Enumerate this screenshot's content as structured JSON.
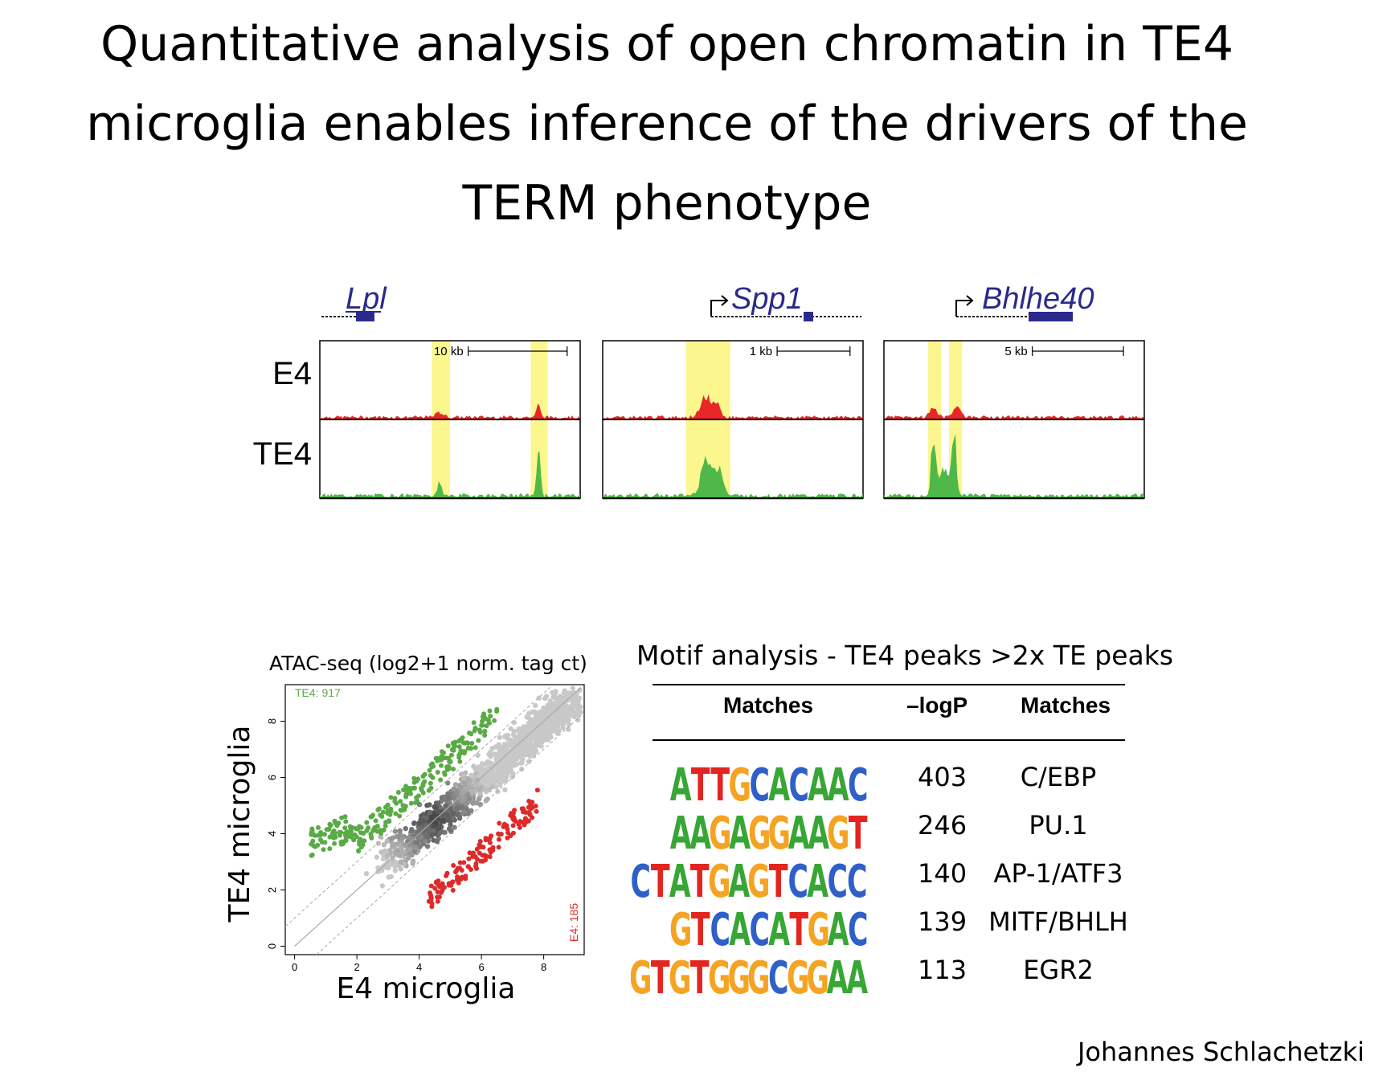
{
  "slide": {
    "title_lines": [
      "Quantitative analysis of open chromatin in TE4",
      "microglia enables inference of the drivers of the",
      "TERM phenotype"
    ],
    "author": "Johannes Schlachetzki"
  },
  "tracks": {
    "row_labels": [
      "E4",
      "TE4"
    ],
    "colors": {
      "E4": "#e8262a",
      "TE4": "#4fb848",
      "highlight": "#fbf68e",
      "gene": "#2a2a8c"
    },
    "panels": [
      {
        "gene": "Lpl",
        "scale": "10 kb",
        "tss_arrow": false
      },
      {
        "gene": "Spp1",
        "scale": "1 kb",
        "tss_arrow": true
      },
      {
        "gene": "Bhlhe40",
        "scale": "5 kb",
        "tss_arrow": true
      }
    ]
  },
  "chart_data": {
    "type": "scatter",
    "title": "ATAC-seq (log2+1 norm. tag ct)",
    "xlabel": "E4 microglia",
    "ylabel": "TE4 microglia",
    "xlim": [
      -0.3,
      9.3
    ],
    "ylim": [
      -0.3,
      9.3
    ],
    "xticks": [
      "0",
      "2",
      "4",
      "6",
      "8"
    ],
    "yticks": [
      "0",
      "2",
      "4",
      "6",
      "8"
    ],
    "series": [
      {
        "name": "TE4: 917",
        "color": "#5aaa46"
      },
      {
        "name": "E4: 185",
        "color": "#dd2a2a"
      }
    ],
    "grid": false
  },
  "motifs": {
    "title": "Motif analysis - TE4 peaks >2x TE peaks",
    "headers": [
      "Matches",
      "–logP",
      "Matches"
    ],
    "rows": [
      {
        "sequence": "ATTGCACAAC",
        "logp": "403",
        "tf": "C/EBP",
        "offset": 50
      },
      {
        "sequence": "AAGAGGAAGT",
        "logp": "246",
        "tf": "PU.1",
        "offset": 50
      },
      {
        "sequence": "CTATGAGTCACC",
        "logp": "140",
        "tf": "AP-1/ATF3",
        "offset": 0
      },
      {
        "sequence": "GTCACATGAC",
        "logp": "139",
        "tf": "MITF/BHLH",
        "offset": 50
      },
      {
        "sequence": "GTGTGGGCGGAA",
        "logp": "113",
        "tf": "EGR2",
        "offset": 0
      }
    ],
    "base_colors": {
      "A": "#38a636",
      "C": "#2f5fc8",
      "G": "#f5a323",
      "T": "#e2251f"
    }
  }
}
